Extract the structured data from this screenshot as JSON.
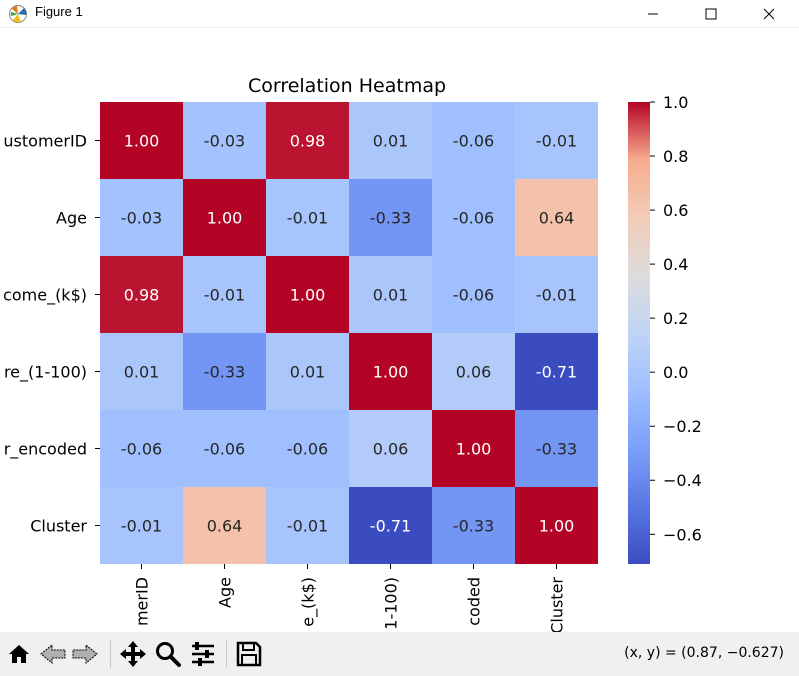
{
  "window": {
    "title": "Figure 1",
    "controls": [
      "minimize",
      "maximize",
      "close"
    ]
  },
  "toolbar": {
    "buttons": [
      {
        "name": "home",
        "icon": "home-icon"
      },
      {
        "name": "back",
        "icon": "back-arrow-icon"
      },
      {
        "name": "forward",
        "icon": "forward-arrow-icon"
      },
      {
        "name": "pan",
        "icon": "move-icon"
      },
      {
        "name": "zoom",
        "icon": "magnifier-icon"
      },
      {
        "name": "configure-subplots",
        "icon": "sliders-icon"
      },
      {
        "name": "save",
        "icon": "floppy-disk-icon"
      }
    ],
    "coordinates": "(x, y) = (0.87, −0.627)"
  },
  "chart_data": {
    "type": "heatmap",
    "title": "Correlation Heatmap",
    "row_labels": [
      "ustomerID",
      "Age",
      "come_(k$)",
      "re_(1-100)",
      "r_encoded",
      "Cluster"
    ],
    "col_labels": [
      "merID",
      "Age",
      "e_(k$)",
      "1-100)",
      "coded",
      "Cluster"
    ],
    "values": [
      [
        1.0,
        -0.03,
        0.98,
        0.01,
        -0.06,
        -0.01
      ],
      [
        -0.03,
        1.0,
        -0.01,
        -0.33,
        -0.06,
        0.64
      ],
      [
        0.98,
        -0.01,
        1.0,
        0.01,
        -0.06,
        -0.01
      ],
      [
        0.01,
        -0.33,
        0.01,
        1.0,
        0.06,
        -0.71
      ],
      [
        -0.06,
        -0.06,
        -0.06,
        0.06,
        1.0,
        -0.33
      ],
      [
        -0.01,
        0.64,
        -0.01,
        -0.71,
        -0.33,
        1.0
      ]
    ],
    "annotations": [
      [
        "1.00",
        "-0.03",
        "0.98",
        "0.01",
        "-0.06",
        "-0.01"
      ],
      [
        "-0.03",
        "1.00",
        "-0.01",
        "-0.33",
        "-0.06",
        "0.64"
      ],
      [
        "0.98",
        "-0.01",
        "1.00",
        "0.01",
        "-0.06",
        "-0.01"
      ],
      [
        "0.01",
        "-0.33",
        "0.01",
        "1.00",
        "0.06",
        "-0.71"
      ],
      [
        "-0.06",
        "-0.06",
        "-0.06",
        "0.06",
        "1.00",
        "-0.33"
      ],
      [
        "-0.01",
        "0.64",
        "-0.01",
        "-0.71",
        "-0.33",
        "1.00"
      ]
    ],
    "colormap": "coolwarm",
    "vmin": -0.71,
    "vmax": 1.0,
    "colorbar_ticks": [
      1.0,
      0.8,
      0.6,
      0.4,
      0.2,
      0.0,
      -0.2,
      -0.4,
      -0.6
    ],
    "colorbar_tick_labels": [
      "1.0",
      "0.8",
      "0.6",
      "0.4",
      "0.2",
      "0.0",
      "−0.2",
      "−0.4",
      "−0.6"
    ]
  }
}
